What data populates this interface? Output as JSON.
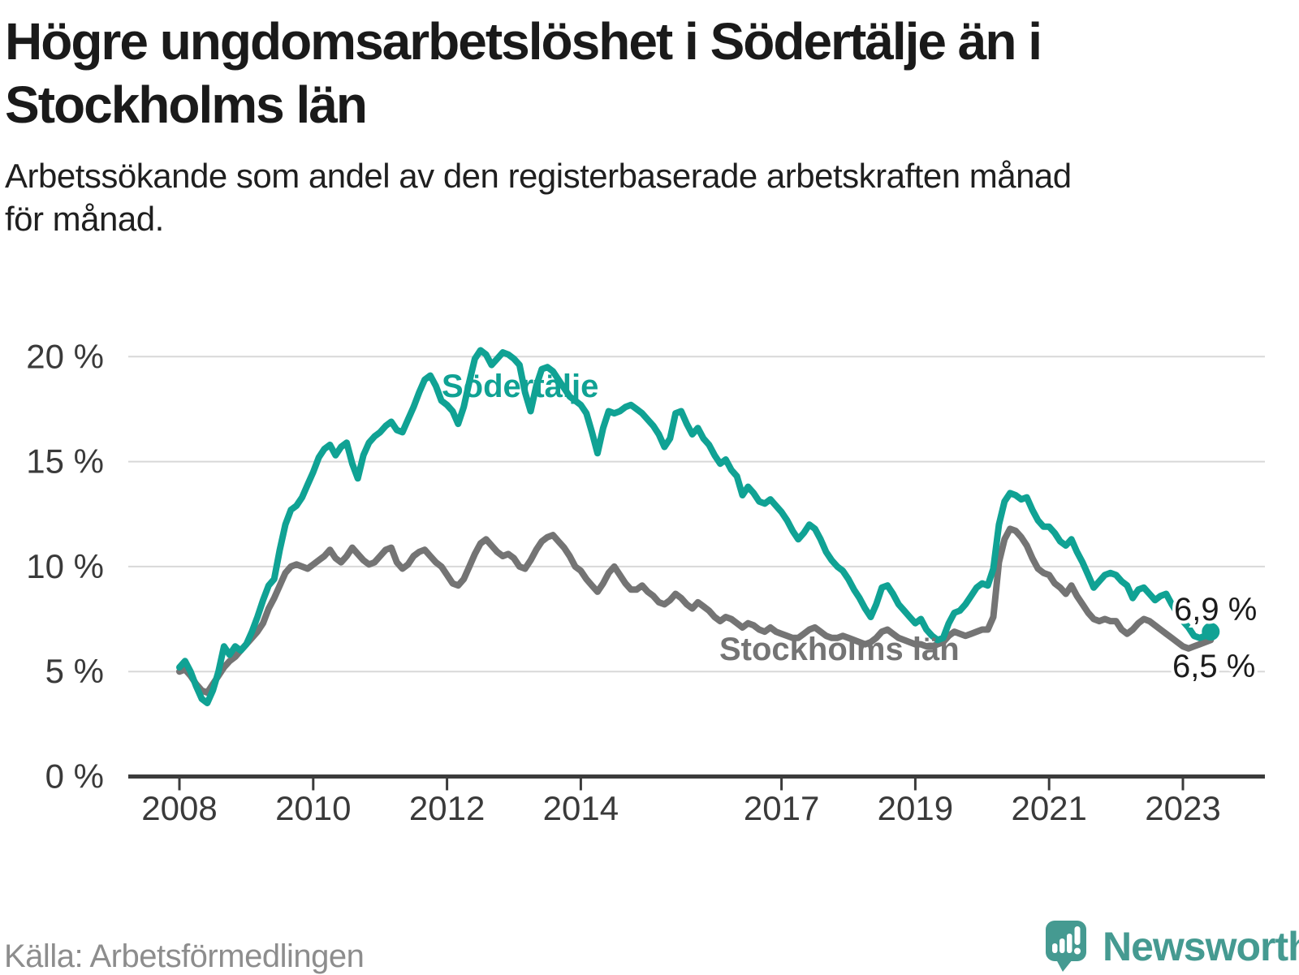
{
  "header": {
    "title": "Högre ungdomsarbetslöshet i Södertälje än i Stockholms län",
    "title_lines": [
      "Högre ungdomsarbetslöshet i Södertälje än i",
      "Stockholms län"
    ],
    "subtitle": "Arbetssökande som andel av den registerbaserade arbetskraften månad för månad.",
    "subtitle_lines": [
      "Arbetssökande som andel av den registerbaserade arbetskraften månad",
      "för månad."
    ]
  },
  "footer": {
    "source": "Källa: Arbetsförmedlingen",
    "brand": "Newsworthy"
  },
  "colors": {
    "accent_teal": "#10a294",
    "series_gray": "#747474",
    "grid": "#d8d8d8",
    "axis": "#3b3b3b",
    "axis_text": "#3a3a3a",
    "value_text": "#1b1b1b",
    "source_text": "#8d8d8d",
    "brand_teal": "#459a91"
  },
  "chart_data": {
    "type": "line",
    "unit": "%",
    "frequency": "monthly",
    "x_start": "2008-01",
    "x_end": "2023-06",
    "x_tick_years": [
      2008,
      2010,
      2012,
      2014,
      2017,
      2019,
      2021,
      2023
    ],
    "y_ticks": [
      0,
      5,
      10,
      15,
      20
    ],
    "y_tick_labels": [
      "0 %",
      "5 %",
      "10 %",
      "15 %",
      "20 %"
    ],
    "ylim": [
      0,
      21
    ],
    "grid": "horizontal-only",
    "legend": "inline-labels",
    "series": [
      {
        "name": "Stockholms län",
        "color": "#747474",
        "end_label": "6,5 %",
        "end_dot": false,
        "values": [
          5.0,
          5.1,
          4.8,
          4.4,
          4.1,
          4.0,
          4.4,
          4.8,
          5.2,
          5.5,
          5.7,
          6.0,
          6.3,
          6.6,
          6.9,
          7.3,
          8.0,
          8.5,
          9.1,
          9.7,
          10.0,
          10.1,
          10.0,
          9.9,
          10.1,
          10.3,
          10.5,
          10.8,
          10.4,
          10.2,
          10.5,
          10.9,
          10.6,
          10.3,
          10.1,
          10.2,
          10.5,
          10.8,
          10.9,
          10.2,
          9.9,
          10.1,
          10.5,
          10.7,
          10.8,
          10.5,
          10.2,
          10.0,
          9.6,
          9.2,
          9.1,
          9.4,
          10.0,
          10.6,
          11.1,
          11.3,
          11.0,
          10.7,
          10.5,
          10.6,
          10.4,
          10.0,
          9.9,
          10.3,
          10.8,
          11.2,
          11.4,
          11.5,
          11.2,
          10.9,
          10.5,
          10.0,
          9.8,
          9.4,
          9.1,
          8.8,
          9.2,
          9.7,
          10.0,
          9.6,
          9.2,
          8.9,
          8.9,
          9.1,
          8.8,
          8.6,
          8.3,
          8.2,
          8.4,
          8.7,
          8.5,
          8.2,
          8.0,
          8.3,
          8.1,
          7.9,
          7.6,
          7.4,
          7.6,
          7.5,
          7.3,
          7.1,
          7.3,
          7.2,
          7.0,
          6.9,
          7.1,
          6.9,
          6.8,
          6.7,
          6.6,
          6.6,
          6.8,
          7.0,
          7.1,
          6.9,
          6.7,
          6.6,
          6.6,
          6.7,
          6.6,
          6.5,
          6.4,
          6.3,
          6.4,
          6.6,
          6.9,
          7.0,
          6.8,
          6.6,
          6.5,
          6.4,
          6.3,
          6.3,
          6.2,
          6.2,
          6.3,
          6.4,
          6.7,
          6.9,
          6.8,
          6.7,
          6.8,
          6.9,
          7.0,
          7.0,
          7.6,
          10.2,
          11.3,
          11.8,
          11.7,
          11.4,
          11.0,
          10.4,
          9.9,
          9.7,
          9.6,
          9.2,
          9.0,
          8.7,
          9.1,
          8.6,
          8.2,
          7.8,
          7.5,
          7.4,
          7.5,
          7.4,
          7.4,
          7.0,
          6.8,
          7.0,
          7.3,
          7.5,
          7.4,
          7.2,
          7.0,
          6.8,
          6.6,
          6.4,
          6.2,
          6.1,
          6.2,
          6.3,
          6.4,
          6.5
        ]
      },
      {
        "name": "Södertälje",
        "color": "#10a294",
        "end_label": "6,9 %",
        "end_dot": true,
        "values": [
          5.2,
          5.5,
          5.0,
          4.3,
          3.7,
          3.5,
          4.1,
          5.0,
          6.2,
          5.8,
          6.2,
          6.0,
          6.3,
          6.9,
          7.6,
          8.4,
          9.1,
          9.4,
          10.8,
          12.0,
          12.7,
          12.9,
          13.3,
          13.9,
          14.5,
          15.2,
          15.6,
          15.8,
          15.3,
          15.7,
          15.9,
          14.9,
          14.2,
          15.3,
          15.9,
          16.2,
          16.4,
          16.7,
          16.9,
          16.5,
          16.4,
          17.0,
          17.6,
          18.3,
          18.9,
          19.1,
          18.6,
          17.9,
          17.7,
          17.4,
          16.8,
          17.6,
          18.8,
          19.9,
          20.3,
          20.1,
          19.6,
          19.9,
          20.2,
          20.1,
          19.9,
          19.6,
          18.3,
          17.4,
          18.6,
          19.4,
          19.5,
          19.3,
          18.9,
          18.5,
          18.1,
          17.9,
          17.7,
          17.3,
          16.4,
          15.4,
          16.6,
          17.4,
          17.3,
          17.4,
          17.6,
          17.7,
          17.5,
          17.3,
          17.0,
          16.7,
          16.3,
          15.7,
          16.1,
          17.3,
          17.4,
          16.8,
          16.3,
          16.6,
          16.1,
          15.8,
          15.3,
          14.9,
          15.1,
          14.6,
          14.3,
          13.4,
          13.8,
          13.5,
          13.1,
          13.0,
          13.2,
          12.9,
          12.6,
          12.2,
          11.7,
          11.3,
          11.6,
          12.0,
          11.8,
          11.3,
          10.7,
          10.3,
          10.0,
          9.8,
          9.4,
          8.9,
          8.5,
          8.0,
          7.6,
          8.2,
          9.0,
          9.1,
          8.7,
          8.2,
          7.9,
          7.6,
          7.3,
          7.5,
          7.0,
          6.7,
          6.5,
          6.6,
          7.3,
          7.8,
          7.9,
          8.2,
          8.6,
          9.0,
          9.2,
          9.1,
          9.9,
          12.0,
          13.1,
          13.5,
          13.4,
          13.2,
          13.3,
          12.7,
          12.2,
          11.9,
          11.9,
          11.6,
          11.2,
          11.0,
          11.3,
          10.7,
          10.2,
          9.6,
          9.0,
          9.3,
          9.6,
          9.7,
          9.6,
          9.3,
          9.1,
          8.5,
          8.9,
          9.0,
          8.7,
          8.4,
          8.6,
          8.7,
          8.2,
          7.8,
          7.4,
          7.1,
          6.7,
          6.6,
          6.7,
          6.9
        ]
      }
    ]
  }
}
